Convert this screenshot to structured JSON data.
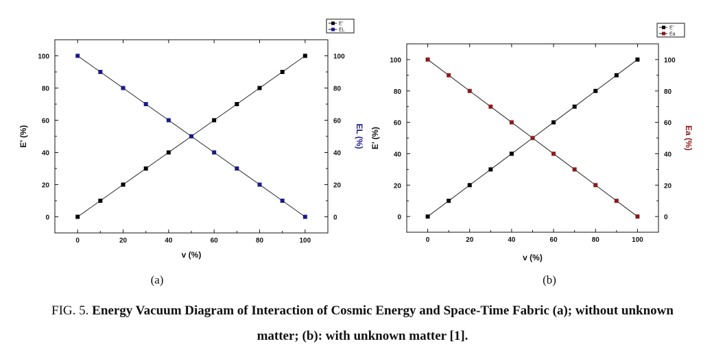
{
  "chart_data": [
    {
      "type": "scatter",
      "panel_label": "(a)",
      "xlabel": "v (%)",
      "ylabel_left": "E' (%)",
      "ylabel_right": "EL (%)",
      "xlim": [
        -10,
        110
      ],
      "ylim": [
        -10,
        110
      ],
      "x_ticks": [
        0,
        20,
        40,
        60,
        80,
        100
      ],
      "y_ticks": [
        0,
        20,
        40,
        60,
        80,
        100
      ],
      "legend": {
        "placement": "top-right-outside",
        "entries": [
          "E'",
          "EL"
        ]
      },
      "series": [
        {
          "name": "E'",
          "color": "#000000",
          "x": [
            0,
            10,
            20,
            30,
            40,
            50,
            60,
            70,
            80,
            90,
            100
          ],
          "y": [
            0,
            10,
            20,
            30,
            40,
            50,
            60,
            70,
            80,
            90,
            100
          ]
        },
        {
          "name": "EL",
          "color": "#1a1a8c",
          "x": [
            0,
            10,
            20,
            30,
            40,
            50,
            60,
            70,
            80,
            90,
            100
          ],
          "y": [
            100,
            90,
            80,
            70,
            60,
            50,
            40,
            30,
            20,
            10,
            0
          ]
        }
      ]
    },
    {
      "type": "scatter",
      "panel_label": "(b)",
      "xlabel": "v (%)",
      "ylabel_left": "E' (%)",
      "ylabel_right": "Ea (%)",
      "xlim": [
        -10,
        110
      ],
      "ylim": [
        -10,
        110
      ],
      "x_ticks": [
        0,
        20,
        40,
        60,
        80,
        100
      ],
      "y_ticks": [
        0,
        20,
        40,
        60,
        80,
        100
      ],
      "legend": {
        "placement": "top-right-outside",
        "entries": [
          "E'",
          "Ea"
        ]
      },
      "series": [
        {
          "name": "E'",
          "color": "#000000",
          "x": [
            0,
            10,
            20,
            30,
            40,
            50,
            60,
            70,
            80,
            90,
            100
          ],
          "y": [
            0,
            10,
            20,
            30,
            40,
            50,
            60,
            70,
            80,
            90,
            100
          ]
        },
        {
          "name": "Ea",
          "color": "#8b1a1a",
          "x": [
            0,
            10,
            20,
            30,
            40,
            50,
            60,
            70,
            80,
            90,
            100
          ],
          "y": [
            100,
            90,
            80,
            70,
            60,
            50,
            40,
            30,
            20,
            10,
            0
          ]
        }
      ]
    }
  ],
  "caption": {
    "prefix": "FIG. 5. ",
    "line1_bold": "Energy Vacuum Diagram of Interaction of Cosmic Energy and Space-Time Fabric (a); without unknown",
    "line2_bold": "matter; (b): with unknown matter [1]."
  }
}
